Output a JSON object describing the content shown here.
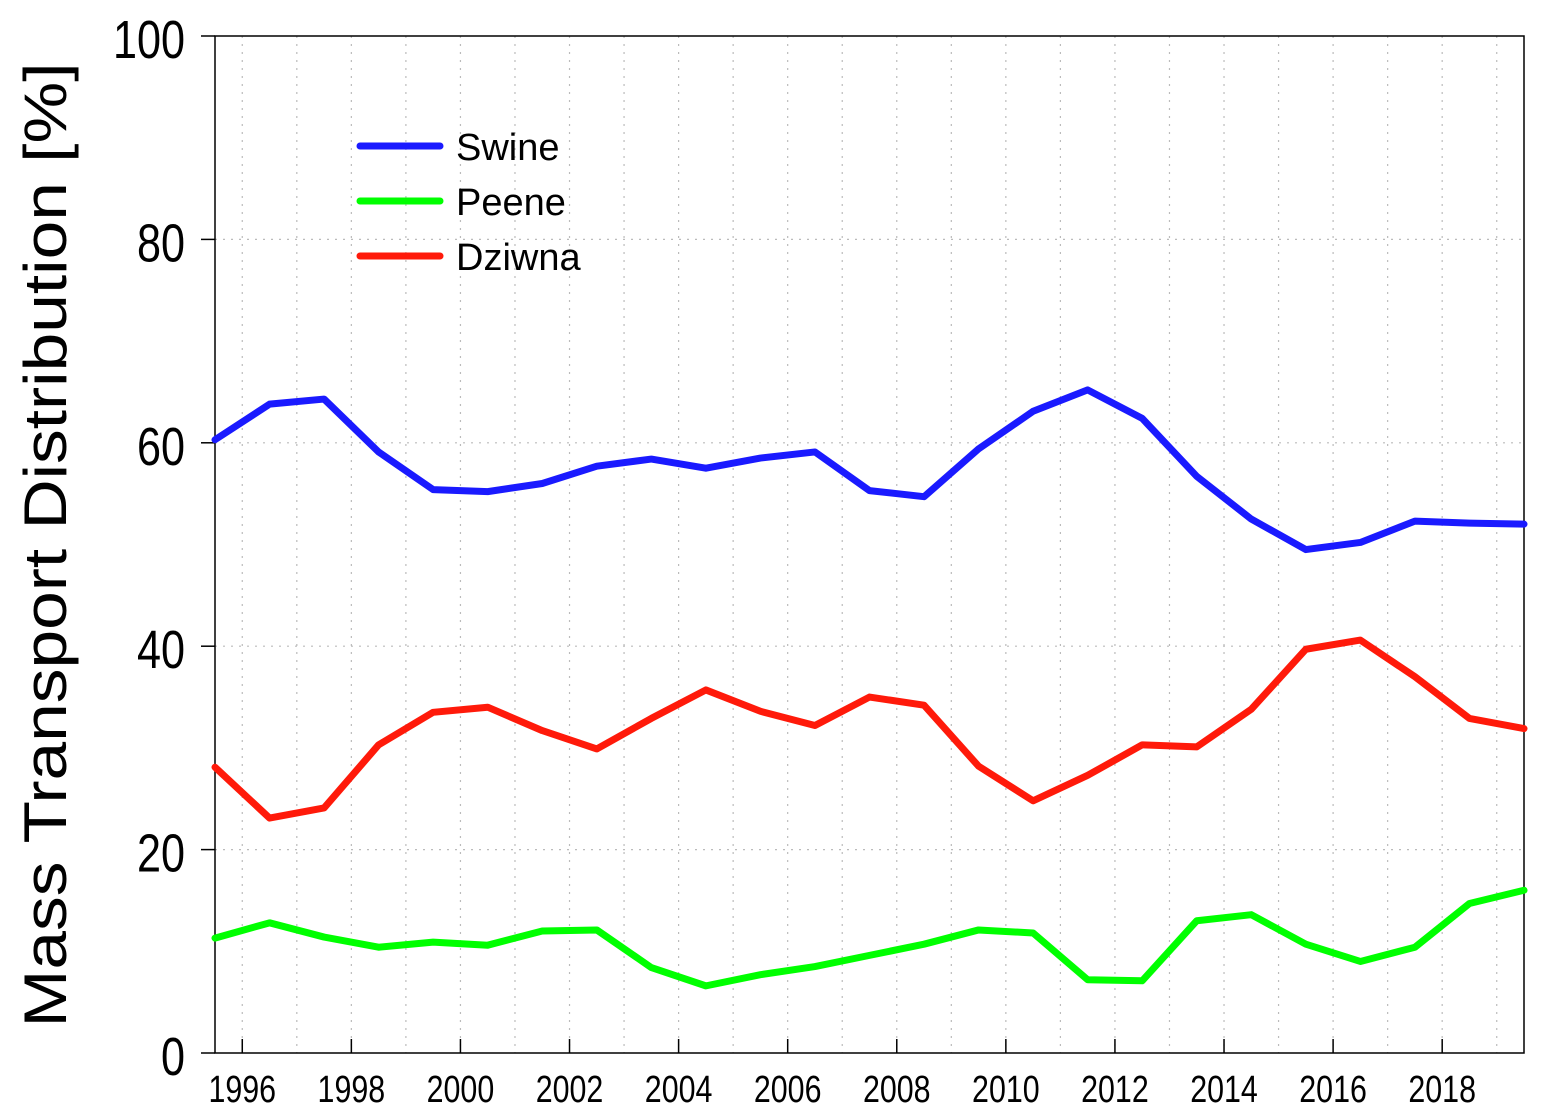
{
  "chart_data": {
    "type": "line",
    "title": "",
    "xlabel": "",
    "ylabel": "Mass Transport Distribution [%]",
    "xlim": [
      1995.5,
      2019.5
    ],
    "ylim": [
      0,
      100
    ],
    "grid": true,
    "legend_position": "top-left",
    "x_ticks": [
      1996,
      1998,
      2000,
      2002,
      2004,
      2006,
      2008,
      2010,
      2012,
      2014,
      2016,
      2018
    ],
    "y_ticks": [
      0,
      20,
      40,
      60,
      80,
      100
    ],
    "x": [
      1995.5,
      1996.5,
      1997.5,
      1998.5,
      1999.5,
      2000.5,
      2001.5,
      2002.5,
      2003.5,
      2004.5,
      2005.5,
      2006.5,
      2007.5,
      2008.5,
      2009.5,
      2010.5,
      2011.5,
      2012.5,
      2013.5,
      2014.5,
      2015.5,
      2016.5,
      2017.5,
      2018.5,
      2019.5
    ],
    "series": [
      {
        "name": "Swine",
        "color": "#1a1aff",
        "values": [
          60.3,
          63.8,
          64.3,
          59.1,
          55.4,
          55.2,
          56.0,
          57.7,
          58.4,
          57.5,
          58.5,
          59.1,
          55.3,
          54.7,
          59.4,
          63.1,
          65.2,
          62.4,
          56.7,
          52.5,
          49.5,
          50.2,
          52.3,
          52.1,
          52.0
        ]
      },
      {
        "name": "Peene",
        "color": "#00ff00",
        "values": [
          11.3,
          12.8,
          11.4,
          10.4,
          10.9,
          10.6,
          12.0,
          12.1,
          8.4,
          6.6,
          7.7,
          8.5,
          9.6,
          10.7,
          12.1,
          11.8,
          7.2,
          7.1,
          13.0,
          13.6,
          10.7,
          9.0,
          10.4,
          14.7,
          16.0
        ]
      },
      {
        "name": "Dziwna",
        "color": "#ff1a0a",
        "values": [
          28.1,
          23.1,
          24.1,
          30.3,
          33.5,
          34.0,
          31.7,
          29.9,
          32.9,
          35.7,
          33.6,
          32.2,
          35.0,
          34.2,
          28.2,
          24.8,
          27.3,
          30.3,
          30.1,
          33.8,
          39.7,
          40.6,
          37.0,
          32.9,
          31.9
        ]
      }
    ]
  }
}
